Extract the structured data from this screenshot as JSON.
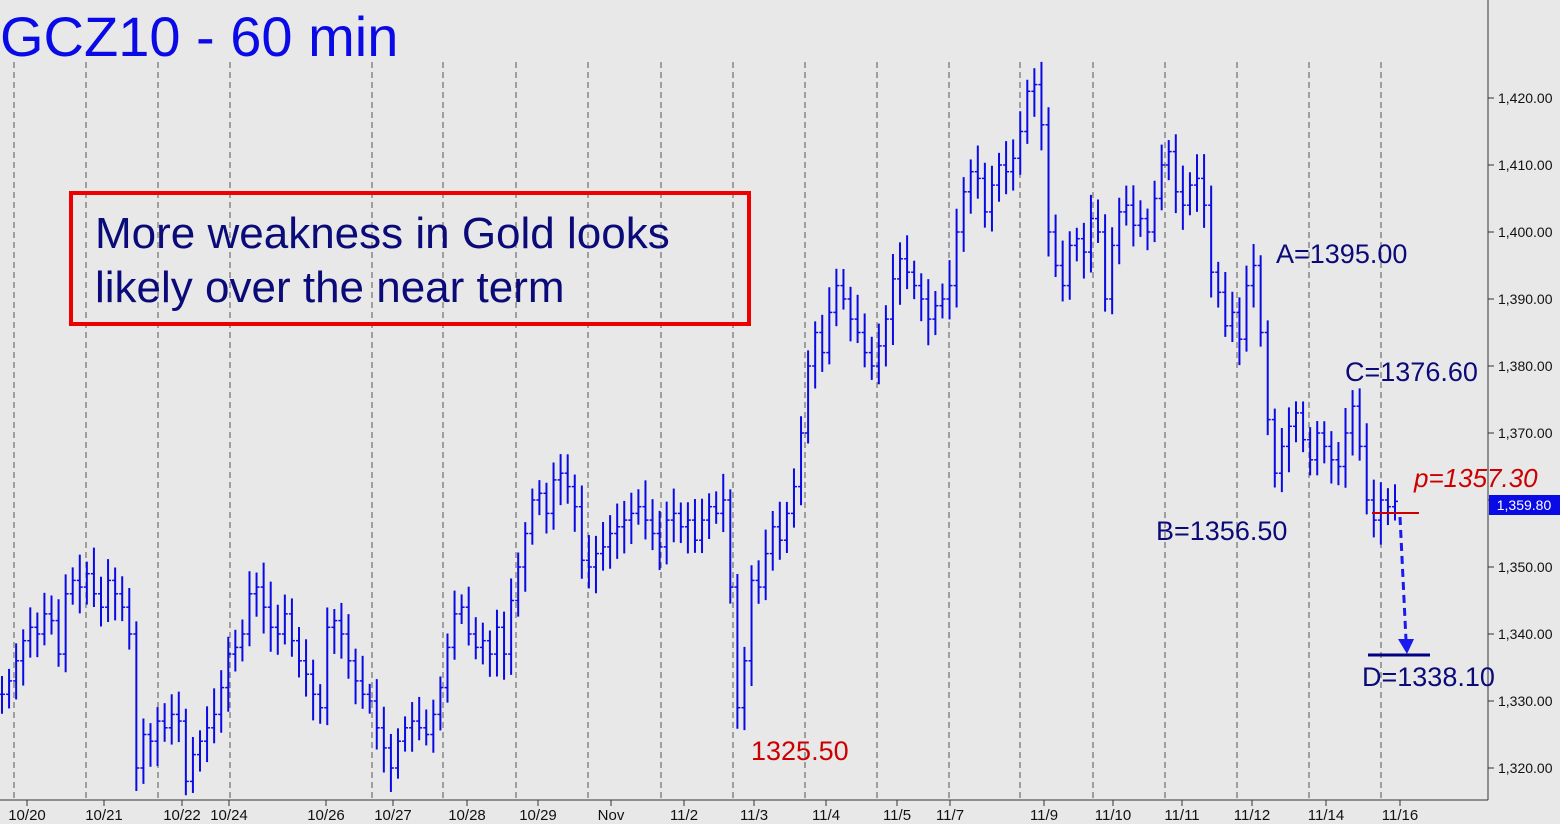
{
  "chart_data": {
    "type": "ohlc",
    "title": "GCZ10 - 60 min",
    "annotation_box": [
      "More weakness in Gold looks",
      "likely over the near term"
    ],
    "ylim": [
      1315,
      1430
    ],
    "y_ticks": [
      "1,320.00",
      "1,330.00",
      "1,340.00",
      "1,350.00",
      "1,360.00",
      "1,370.00",
      "1,380.00",
      "1,390.00",
      "1,400.00",
      "1,410.00",
      "1,420.00"
    ],
    "x_ticks": [
      "10/20",
      "10/21",
      "10/22",
      "10/24",
      "10/26",
      "10/27",
      "10/28",
      "10/29",
      "Nov",
      "11/2",
      "11/3",
      "11/4",
      "11/5",
      "11/7",
      "11/9",
      "11/10",
      "11/11",
      "11/12",
      "11/14",
      "11/16"
    ],
    "last_price": {
      "label": "1,359.80",
      "value": 1359.8
    },
    "points": [
      {
        "label": "A=1395.00",
        "value": 1395.0
      },
      {
        "label": "B=1356.50",
        "value": 1356.5
      },
      {
        "label": "C=1376.60",
        "value": 1376.6
      },
      {
        "label": "D=1338.10",
        "value": 1338.1
      },
      {
        "label": "p=1357.30",
        "value": 1357.3
      },
      {
        "label": "1325.50",
        "value": 1325.5
      }
    ],
    "series": [
      {
        "values": [
          1331,
          1333,
          1336,
          1339,
          1341,
          1340,
          1343,
          1342,
          1337,
          1346,
          1348,
          1347,
          1349,
          1346,
          1344,
          1348,
          1346,
          1344,
          1340,
          1320,
          1325,
          1324,
          1327,
          1326,
          1328,
          1327,
          1318,
          1322,
          1324,
          1326,
          1328,
          1332,
          1337,
          1338,
          1340,
          1346,
          1347,
          1344,
          1341,
          1340,
          1343,
          1339,
          1336,
          1334,
          1331,
          1329,
          1341,
          1342,
          1340,
          1336,
          1333,
          1331,
          1330,
          1326,
          1323,
          1320,
          1324,
          1326,
          1327,
          1326,
          1325,
          1328,
          1332,
          1338,
          1343,
          1344,
          1340,
          1338,
          1339,
          1337,
          1341,
          1337,
          1345,
          1350,
          1355,
          1360,
          1361,
          1358,
          1363,
          1364,
          1362,
          1359,
          1351,
          1350,
          1352,
          1353,
          1355,
          1356,
          1357,
          1358,
          1359,
          1357,
          1355,
          1353,
          1357,
          1358,
          1356,
          1357,
          1354,
          1357,
          1359,
          1358,
          1360,
          1347,
          1329,
          1336,
          1348,
          1347,
          1352,
          1356,
          1354,
          1358,
          1362,
          1370,
          1380,
          1385,
          1382,
          1388,
          1392,
          1390,
          1387,
          1385,
          1382,
          1380,
          1383,
          1387,
          1393,
          1396,
          1394,
          1392,
          1390,
          1387,
          1389,
          1390,
          1392,
          1400,
          1406,
          1409,
          1408,
          1403,
          1407,
          1410,
          1409,
          1411,
          1415,
          1421,
          1422,
          1416,
          1400,
          1395,
          1392,
          1398,
          1399,
          1397,
          1402,
          1400,
          1390,
          1398,
          1403,
          1404,
          1401,
          1402,
          1400,
          1405,
          1410,
          1412,
          1406,
          1404,
          1407,
          1408,
          1404,
          1394,
          1391,
          1386,
          1388,
          1384,
          1392,
          1395,
          1385,
          1372,
          1364,
          1368,
          1371,
          1373,
          1369,
          1366,
          1370,
          1368,
          1366,
          1365,
          1370,
          1374,
          1368,
          1360,
          1357,
          1360,
          1359,
          1359.8
        ]
      }
    ]
  }
}
